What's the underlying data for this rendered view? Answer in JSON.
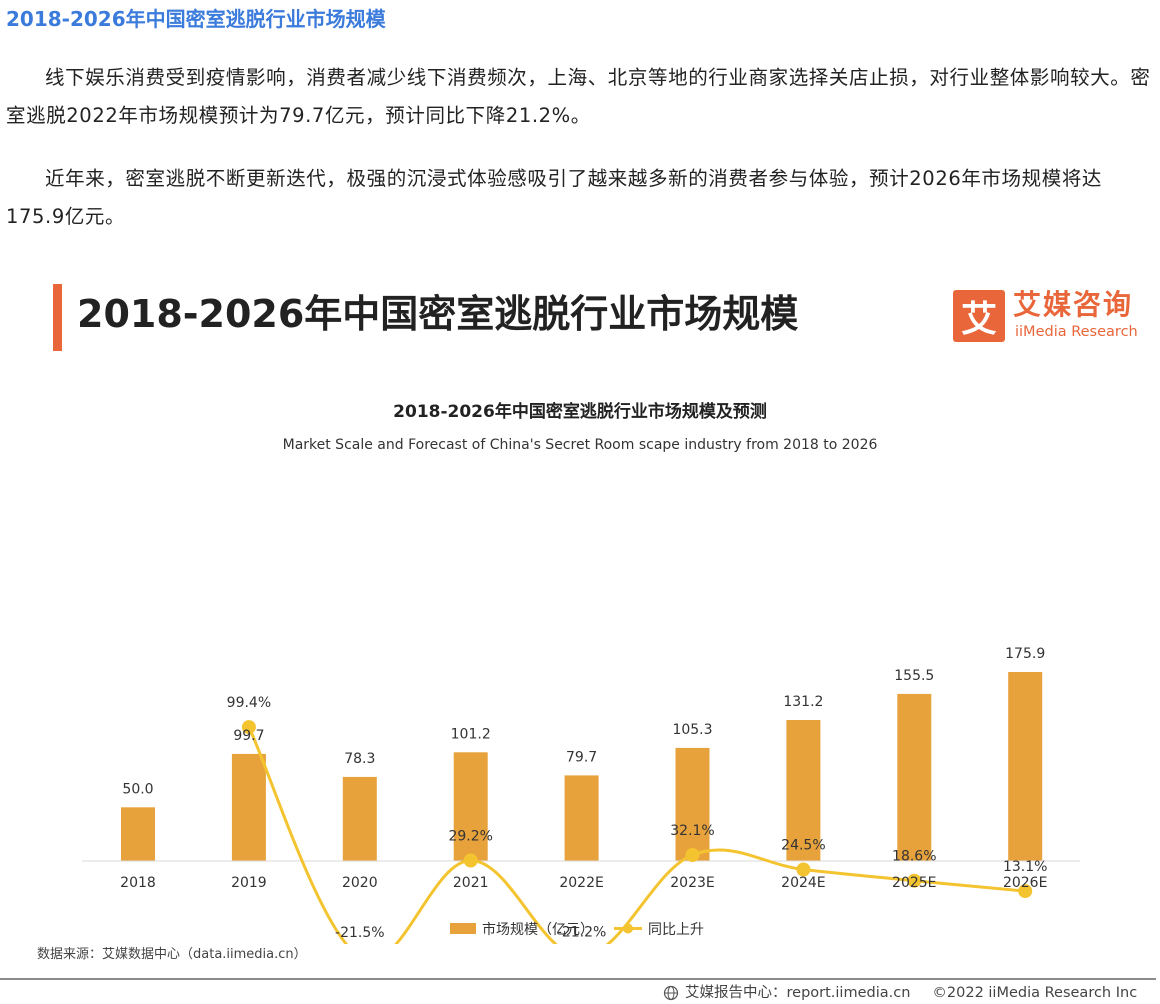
{
  "article": {
    "title": "2018-2026年中国密室逃脱行业市场规模",
    "paragraphs": [
      "线下娱乐消费受到疫情影响，消费者减少线下消费频次，上海、北京等地的行业商家选择关店止损，对行业整体影响较大。密室逃脱2022年市场规模预计为79.7亿元，预计同比下降21.2%。",
      "近年来，密室逃脱不断更新迭代，极强的沉浸式体验感吸引了越来越多新的消费者参与体验，预计2026年市场规模将达175.9亿元。"
    ]
  },
  "figure": {
    "header_title": "2018-2026年中国密室逃脱行业市场规模",
    "logo_glyph": "艾",
    "logo_cn": "艾媒咨询",
    "logo_en": "iiMedia Research",
    "source": "数据来源：艾媒数据中心（data.iimedia.cn）",
    "footer_report": "艾媒报告中心：report.iimedia.cn",
    "footer_copyright": "©2022  iiMedia Research  Inc"
  },
  "colors": {
    "accent": "#e8663a",
    "bar": "#e8a23c",
    "line": "#f4c430",
    "title_blue": "#3b7bdc"
  },
  "chart_data": {
    "type": "bar",
    "title": "2018-2026年中国密室逃脱行业市场规模及预测",
    "subtitle": "Market Scale and Forecast of China's Secret Room scape  industry from 2018 to 2026",
    "categories": [
      "2018",
      "2019",
      "2020",
      "2021",
      "2022E",
      "2023E",
      "2024E",
      "2025E",
      "2026E"
    ],
    "series": [
      {
        "name": "市场规模（亿元）",
        "type": "bar",
        "values": [
          50.0,
          99.7,
          78.3,
          101.2,
          79.7,
          105.3,
          131.2,
          155.5,
          175.9
        ],
        "labels": [
          "50.0",
          "99.7",
          "78.3",
          "101.2",
          "79.7",
          "105.3",
          "131.2",
          "155.5",
          "175.9"
        ]
      },
      {
        "name": "同比上升",
        "type": "line",
        "values": [
          null,
          99.4,
          -21.5,
          29.2,
          -21.2,
          32.1,
          24.5,
          18.6,
          13.1
        ],
        "labels": [
          null,
          "99.4%",
          "-21.5%",
          "29.2%",
          "-21.2%",
          "32.1%",
          "24.5%",
          "18.6%",
          "13.1%"
        ]
      }
    ],
    "legend_position": "bottom-center",
    "grid": false
  }
}
